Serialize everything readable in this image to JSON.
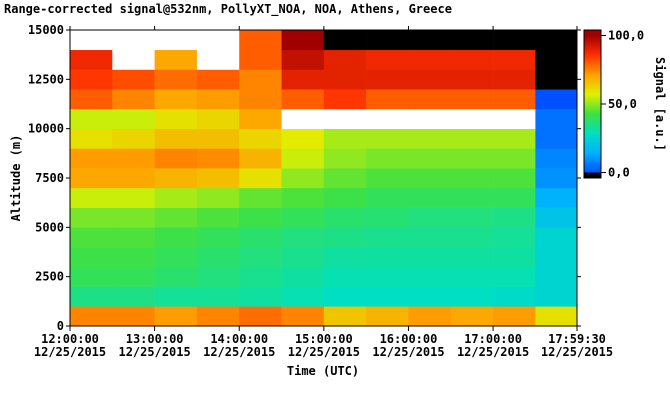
{
  "chart_data": {
    "type": "heatmap",
    "title": "Range-corrected signal@532nm, PollyXT_NOA, NOA, Athens, Greece",
    "x_label": "Time (UTC)",
    "y_label": "Altitude (m)",
    "colorbar_label": "Signal [a.u.]",
    "x_bins": [
      "2015-12-25T12:00:00",
      "2015-12-25T12:30:00",
      "2015-12-25T13:00:00",
      "2015-12-25T13:30:00",
      "2015-12-25T14:00:00",
      "2015-12-25T14:30:00",
      "2015-12-25T15:00:00",
      "2015-12-25T15:30:00",
      "2015-12-25T16:00:00",
      "2015-12-25T16:30:00",
      "2015-12-25T17:00:00",
      "2015-12-25T17:30:00",
      "2015-12-25T17:59:30"
    ],
    "y_bins": [
      0,
      1000,
      2000,
      3000,
      4000,
      5000,
      6000,
      7000,
      8000,
      9000,
      10000,
      11000,
      12000,
      13000,
      14000,
      15000
    ],
    "values": [
      [
        75,
        75,
        72,
        75,
        78,
        75,
        65,
        68,
        72,
        70,
        72,
        60
      ],
      [
        35,
        35,
        33,
        33,
        32,
        30,
        28,
        28,
        28,
        28,
        27,
        25
      ],
      [
        40,
        40,
        38,
        36,
        34,
        32,
        30,
        30,
        30,
        30,
        30,
        25
      ],
      [
        42,
        42,
        40,
        38,
        36,
        34,
        32,
        32,
        32,
        32,
        32,
        25
      ],
      [
        44,
        44,
        42,
        40,
        38,
        36,
        35,
        34,
        34,
        34,
        33,
        25
      ],
      [
        48,
        48,
        46,
        44,
        42,
        40,
        38,
        37,
        36,
        36,
        35,
        20
      ],
      [
        55,
        55,
        52,
        50,
        46,
        44,
        42,
        40,
        40,
        40,
        40,
        15
      ],
      [
        70,
        70,
        68,
        66,
        60,
        50,
        46,
        44,
        44,
        44,
        44,
        10
      ],
      [
        72,
        72,
        75,
        74,
        68,
        55,
        50,
        48,
        48,
        48,
        48,
        8
      ],
      [
        60,
        62,
        66,
        66,
        62,
        58,
        52,
        52,
        52,
        52,
        52,
        5
      ],
      [
        55,
        55,
        60,
        62,
        70,
        110,
        110,
        110,
        110,
        110,
        110,
        5
      ],
      [
        80,
        75,
        70,
        72,
        75,
        80,
        85,
        80,
        80,
        80,
        80,
        0
      ],
      [
        85,
        82,
        78,
        80,
        75,
        90,
        90,
        90,
        90,
        90,
        90,
        -5
      ],
      [
        88,
        110,
        70,
        110,
        80,
        95,
        90,
        88,
        88,
        88,
        88,
        -5
      ],
      [
        110,
        110,
        110,
        110,
        80,
        100,
        -5,
        -5,
        -5,
        -5,
        -5,
        -5
      ]
    ],
    "xlim": [
      "2015-12-25T12:00:00",
      "2015-12-25T17:59:30"
    ],
    "xticks": [
      {
        "value": "2015-12-25T12:00:00",
        "label": "12:00:00\n12/25/2015"
      },
      {
        "value": "2015-12-25T13:00:00",
        "label": "13:00:00\n12/25/2015"
      },
      {
        "value": "2015-12-25T14:00:00",
        "label": "14:00:00\n12/25/2015"
      },
      {
        "value": "2015-12-25T15:00:00",
        "label": "15:00:00\n12/25/2015"
      },
      {
        "value": "2015-12-25T16:00:00",
        "label": "16:00:00\n12/25/2015"
      },
      {
        "value": "2015-12-25T17:00:00",
        "label": "17:00:00\n12/25/2015"
      },
      {
        "value": "2015-12-25T17:59:30",
        "label": "17:59:30\n12/25/2015"
      }
    ],
    "ylim": [
      0,
      15000
    ],
    "yticks": [
      0,
      2500,
      5000,
      7500,
      10000,
      12500,
      15000
    ],
    "zlim": [
      -4,
      104
    ],
    "zticks": [
      {
        "value": 100,
        "label": "100,0"
      },
      {
        "value": 50,
        "label": "50,0"
      },
      {
        "value": 0,
        "label": "0,0"
      }
    ],
    "colormap": [
      "#0050ff",
      "#00b0ff",
      "#00e0c0",
      "#40e040",
      "#e0f000",
      "#ffa000",
      "#ff3000",
      "#a00000"
    ],
    "colormap_range": [
      0,
      100
    ],
    "under_color": "#000000",
    "over_color": "#ffffff"
  }
}
